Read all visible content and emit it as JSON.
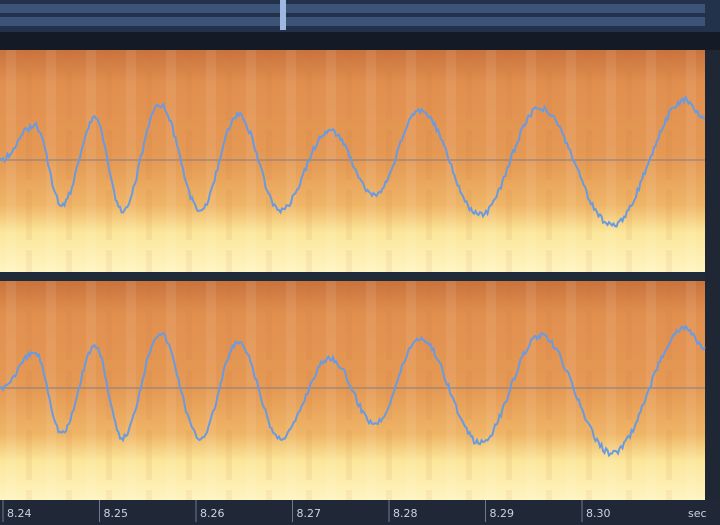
{
  "timeline": {
    "labels": [
      "8.24",
      "8.25",
      "8.26",
      "8.27",
      "8.28",
      "8.29",
      "8.30"
    ],
    "unit": "sec"
  }
}
